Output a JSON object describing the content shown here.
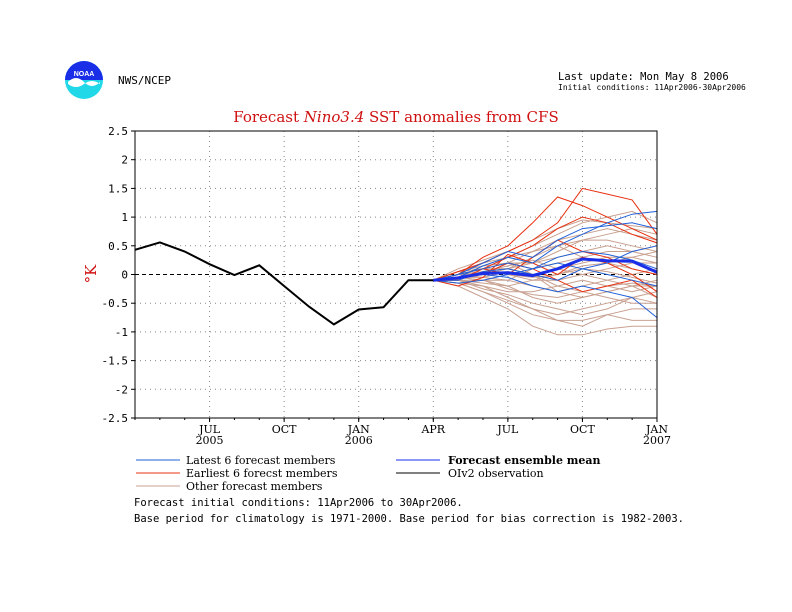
{
  "header": {
    "agency": "NWS/NCEP",
    "last_update": "Last update: Mon May 8 2006",
    "initial_conditions": "Initial conditions: 11Apr2006-30Apr2006"
  },
  "logo": {
    "text": "NOAA",
    "icon": "noaa-logo-icon"
  },
  "chart_data": {
    "type": "line",
    "title_prefix": "Forecast ",
    "title_italic": "Nino3.4",
    "title_suffix": " SST anomalies from CFS",
    "ylabel": "°K",
    "ylim": [
      -2.5,
      2.5
    ],
    "yticks": [
      "2.5",
      "2",
      "1.5",
      "1",
      "0.5",
      "0",
      "-0.5",
      "-1",
      "-1.5",
      "-2",
      "-2.5"
    ],
    "ytick_values": [
      2.5,
      2,
      1.5,
      1,
      0.5,
      0,
      -0.5,
      -1,
      -1.5,
      -2,
      -2.5
    ],
    "xlim": [
      "2005-04",
      "2007-01"
    ],
    "x_months": [
      "2005-04",
      "2005-05",
      "2005-06",
      "2005-07",
      "2005-08",
      "2005-09",
      "2005-10",
      "2005-11",
      "2005-12",
      "2006-01",
      "2006-02",
      "2006-03",
      "2006-04",
      "2006-05",
      "2006-06",
      "2006-07",
      "2006-08",
      "2006-09",
      "2006-10",
      "2006-11",
      "2006-12",
      "2007-01"
    ],
    "xticks": [
      {
        "x": "2005-07",
        "label": "JUL",
        "year": "2005"
      },
      {
        "x": "2005-10",
        "label": "OCT",
        "year": ""
      },
      {
        "x": "2006-01",
        "label": "JAN",
        "year": "2006"
      },
      {
        "x": "2006-04",
        "label": "APR",
        "year": ""
      },
      {
        "x": "2006-07",
        "label": "JUL",
        "year": ""
      },
      {
        "x": "2006-10",
        "label": "OCT",
        "year": ""
      },
      {
        "x": "2007-01",
        "label": "JAN",
        "year": "2007"
      }
    ],
    "grid": true,
    "zero_line": true,
    "colors": {
      "latest": "#2060d8",
      "earliest": "#e83010",
      "other": "#c8a090",
      "mean": "#1a2ee8",
      "observation": "#000000"
    },
    "observation": {
      "name": "OIv2 observation",
      "x": [
        "2005-04",
        "2005-05",
        "2005-06",
        "2005-07",
        "2005-08",
        "2005-09",
        "2005-10",
        "2005-11",
        "2005-12",
        "2006-01",
        "2006-02",
        "2006-03",
        "2006-04"
      ],
      "values": [
        0.43,
        0.56,
        0.4,
        0.18,
        -0.01,
        0.16,
        -0.2,
        -0.56,
        -0.87,
        -0.61,
        -0.57,
        -0.1,
        -0.1
      ]
    },
    "forecast_x": [
      "2006-04",
      "2006-05",
      "2006-06",
      "2006-07",
      "2006-08",
      "2006-09",
      "2006-10",
      "2006-11",
      "2006-12",
      "2007-01"
    ],
    "ensemble_mean": {
      "name": "Forecast ensemble mean",
      "values": [
        -0.1,
        -0.06,
        0.02,
        0.03,
        -0.02,
        0.1,
        0.27,
        0.24,
        0.23,
        0.04
      ]
    },
    "latest_members": [
      [
        -0.1,
        -0.05,
        0.15,
        0.3,
        0.2,
        0.5,
        0.7,
        0.9,
        1.05,
        1.1
      ],
      [
        -0.1,
        0.0,
        0.2,
        0.4,
        0.3,
        0.6,
        0.8,
        0.85,
        0.9,
        0.8
      ],
      [
        -0.1,
        -0.1,
        0.05,
        0.1,
        0.0,
        -0.1,
        0.1,
        0.2,
        0.4,
        0.5
      ],
      [
        -0.1,
        -0.05,
        0.0,
        -0.05,
        -0.2,
        -0.3,
        -0.2,
        -0.3,
        -0.4,
        -0.75
      ],
      [
        -0.1,
        -0.15,
        -0.1,
        0.0,
        0.1,
        0.3,
        0.4,
        0.35,
        0.25,
        0.1
      ],
      [
        -0.1,
        0.0,
        0.1,
        0.2,
        0.1,
        0.2,
        0.1,
        0.0,
        -0.1,
        -0.2
      ]
    ],
    "earliest_members": [
      [
        -0.1,
        0.0,
        0.3,
        0.5,
        0.9,
        1.35,
        1.2,
        1.0,
        0.8,
        0.6
      ],
      [
        -0.1,
        0.05,
        0.2,
        0.4,
        0.6,
        0.9,
        1.5,
        1.4,
        1.3,
        0.7
      ],
      [
        -0.1,
        -0.1,
        0.1,
        0.3,
        0.5,
        0.8,
        1.0,
        0.9,
        0.7,
        0.55
      ],
      [
        -0.1,
        -0.2,
        -0.05,
        0.35,
        0.2,
        0.0,
        0.3,
        0.2,
        0.0,
        -0.3
      ],
      [
        -0.1,
        -0.05,
        0.0,
        0.2,
        0.1,
        -0.1,
        -0.3,
        -0.2,
        -0.1,
        -0.4
      ],
      [
        -0.1,
        0.0,
        0.1,
        0.0,
        0.3,
        0.6,
        0.4,
        0.3,
        0.1,
        0.0
      ]
    ],
    "other_members": [
      [
        -0.1,
        -0.2,
        -0.4,
        -0.6,
        -0.9,
        -1.05,
        -1.05,
        -0.95,
        -0.9,
        -0.9
      ],
      [
        -0.1,
        -0.15,
        -0.3,
        -0.5,
        -0.7,
        -0.8,
        -0.9,
        -0.7,
        -0.6,
        -0.6
      ],
      [
        -0.1,
        -0.1,
        -0.2,
        -0.4,
        -0.6,
        -0.7,
        -0.6,
        -0.5,
        -0.4,
        -0.3
      ],
      [
        -0.1,
        -0.05,
        -0.1,
        -0.2,
        -0.4,
        -0.5,
        -0.4,
        -0.3,
        -0.2,
        -0.4
      ],
      [
        -0.1,
        0.0,
        -0.05,
        -0.1,
        -0.2,
        -0.3,
        -0.2,
        -0.1,
        0.0,
        0.1
      ],
      [
        -0.1,
        0.0,
        0.05,
        0.0,
        -0.1,
        -0.1,
        0.0,
        0.1,
        0.2,
        0.2
      ],
      [
        -0.1,
        0.0,
        0.1,
        0.1,
        0.0,
        0.1,
        0.2,
        0.3,
        0.3,
        0.2
      ],
      [
        -0.1,
        0.05,
        0.15,
        0.2,
        0.2,
        0.3,
        0.4,
        0.5,
        0.4,
        0.3
      ],
      [
        -0.1,
        0.05,
        0.2,
        0.3,
        0.4,
        0.6,
        0.7,
        0.8,
        0.7,
        0.6
      ],
      [
        -0.1,
        0.1,
        0.25,
        0.4,
        0.6,
        0.8,
        0.95,
        0.9,
        0.85,
        0.8
      ],
      [
        -0.1,
        0.0,
        0.1,
        0.3,
        0.5,
        0.7,
        0.9,
        1.0,
        1.1,
        0.9
      ],
      [
        -0.1,
        -0.05,
        0.0,
        0.1,
        0.3,
        0.5,
        0.6,
        0.7,
        0.8,
        0.7
      ],
      [
        -0.1,
        -0.1,
        -0.1,
        -0.1,
        0.1,
        0.2,
        0.3,
        0.4,
        0.4,
        0.5
      ],
      [
        -0.1,
        -0.15,
        -0.2,
        -0.3,
        -0.3,
        -0.2,
        -0.1,
        -0.2,
        -0.3,
        -0.2
      ],
      [
        -0.1,
        -0.1,
        -0.25,
        -0.35,
        -0.5,
        -0.6,
        -0.7,
        -0.6,
        -0.4,
        -0.5
      ],
      [
        -0.1,
        0.0,
        0.0,
        0.2,
        0.0,
        -0.2,
        -0.3,
        -0.4,
        -0.5,
        -0.5
      ],
      [
        -0.1,
        -0.05,
        0.05,
        0.15,
        0.25,
        0.1,
        0.0,
        -0.1,
        -0.2,
        -0.1
      ],
      [
        -0.1,
        0.05,
        0.1,
        0.0,
        -0.05,
        0.0,
        0.15,
        0.2,
        0.1,
        0.0
      ],
      [
        -0.1,
        -0.1,
        -0.15,
        -0.2,
        -0.1,
        0.0,
        0.1,
        0.05,
        -0.05,
        -0.15
      ],
      [
        -0.1,
        0.0,
        0.1,
        0.2,
        0.4,
        0.5,
        0.3,
        0.2,
        0.3,
        0.4
      ],
      [
        -0.1,
        -0.05,
        -0.05,
        0.05,
        0.0,
        -0.3,
        -0.4,
        -0.3,
        -0.2,
        -0.2
      ],
      [
        -0.1,
        -0.15,
        -0.3,
        -0.45,
        -0.6,
        -0.8,
        -0.8,
        -0.7,
        -0.8,
        -0.8
      ],
      [
        -0.1,
        0.0,
        0.05,
        0.1,
        0.2,
        0.4,
        0.6,
        0.6,
        0.5,
        0.4
      ],
      [
        -0.1,
        -0.05,
        -0.1,
        -0.25,
        -0.35,
        -0.4,
        -0.3,
        -0.2,
        -0.15,
        -0.2
      ]
    ],
    "legend": {
      "placement": "bottom",
      "latest": "Latest 6 forecast members",
      "earliest": "Earliest 6 forecst members",
      "other": "Other forecast members",
      "mean": "Forecast ensemble mean",
      "observation": "OIv2 observation"
    }
  },
  "footer": {
    "line1": "Forecast initial conditions: 11Apr2006 to 30Apr2006.",
    "line2": "Base period for climatology is 1971-2000. Base period for bias correction is 1982-2003."
  }
}
